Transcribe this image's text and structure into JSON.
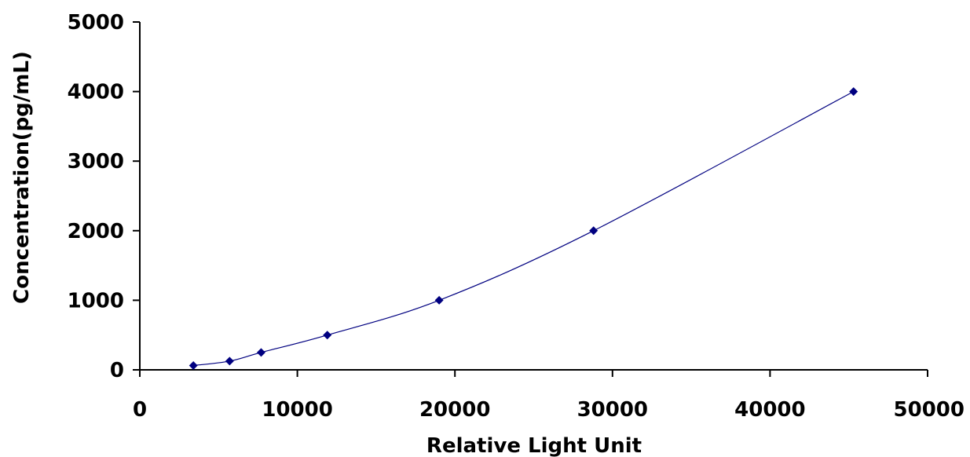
{
  "chart_data": {
    "type": "scatter",
    "title": "",
    "xlabel": "Relative Light Unit",
    "ylabel": "Concentration(pg/mL)",
    "xlim": [
      0,
      50000
    ],
    "ylim": [
      0,
      5000
    ],
    "x_ticks": [
      "0",
      "10000",
      "20000",
      "30000",
      "40000",
      "50000"
    ],
    "y_ticks": [
      "0",
      "1000",
      "2000",
      "3000",
      "4000",
      "5000"
    ],
    "grid": false,
    "legend": "none",
    "marker_color": "#000080",
    "line_color": "#000080",
    "line": "smooth",
    "series": [
      {
        "x": [
          3400,
          5700,
          7700,
          11900,
          19000,
          28800,
          45300
        ],
        "y": [
          62.5,
          125,
          250,
          500,
          1000,
          2000,
          4000
        ]
      }
    ]
  }
}
